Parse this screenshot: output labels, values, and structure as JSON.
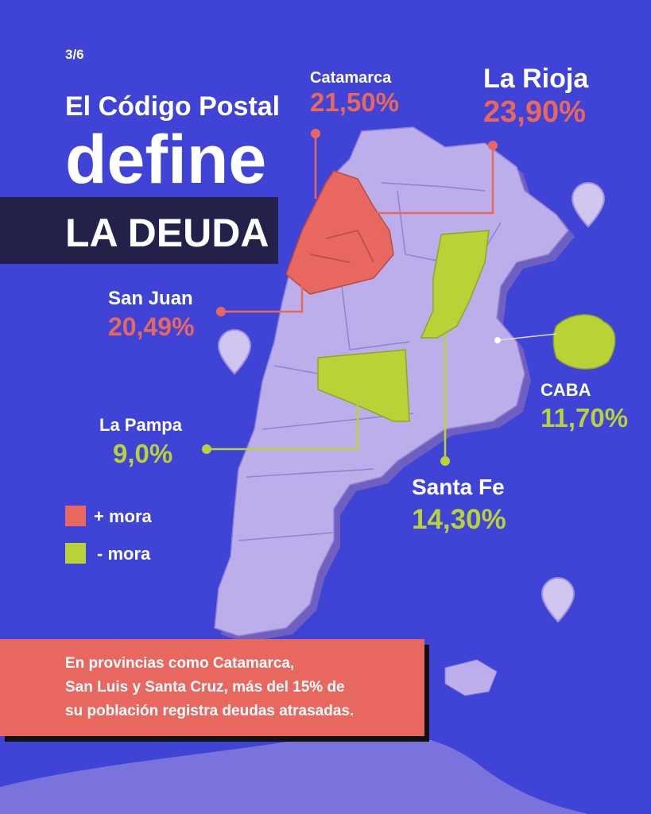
{
  "page_number": "3/6",
  "title": {
    "line1": "El Código Postal",
    "line2": "define",
    "line3": "LA DEUDA"
  },
  "callouts": [
    {
      "name": "Catamarca",
      "value": "21,50%"
    },
    {
      "name": "La Rioja",
      "value": "23,90%"
    },
    {
      "name": "San Juan",
      "value": "20,49%"
    },
    {
      "name": "CABA",
      "value": "11,70%"
    },
    {
      "name": "La Pampa",
      "value": "9,0%"
    },
    {
      "name": "Santa Fe",
      "value": "14,30%"
    }
  ],
  "legend": [
    {
      "label": "+ mora"
    },
    {
      "label": "- mora"
    }
  ],
  "footer": {
    "lines": [
      "En provincias como Catamarca,",
      "San Luis y Santa Cruz, más del 15%  de",
      "su población registra deudas atrasadas."
    ]
  }
}
